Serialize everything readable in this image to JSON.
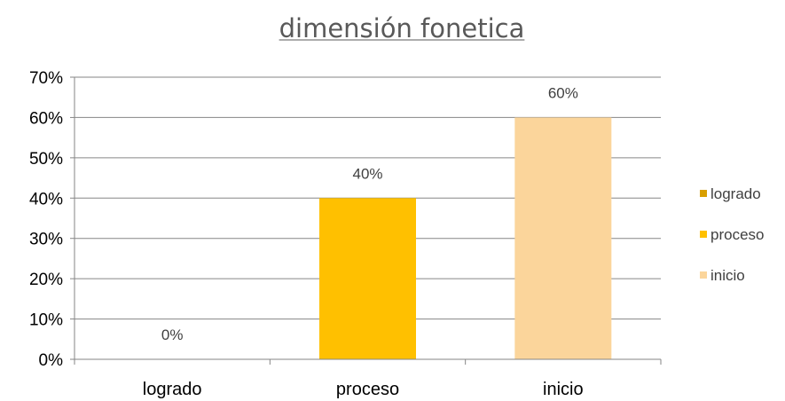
{
  "chart_data": {
    "type": "bar",
    "title": "dimensión fonetica",
    "categories": [
      "logrado",
      "proceso",
      "inicio"
    ],
    "values": [
      0,
      40,
      60
    ],
    "data_labels": [
      "0%",
      "40%",
      "60%"
    ],
    "colors": [
      "#D89F00",
      "#FFC000",
      "#FBD59B"
    ],
    "ylim": [
      0,
      70
    ],
    "yticks": [
      "0%",
      "10%",
      "20%",
      "30%",
      "40%",
      "50%",
      "60%",
      "70%"
    ],
    "grid": true,
    "legend": {
      "position": "right",
      "entries": [
        "logrado",
        "proceso",
        "inicio"
      ]
    }
  }
}
